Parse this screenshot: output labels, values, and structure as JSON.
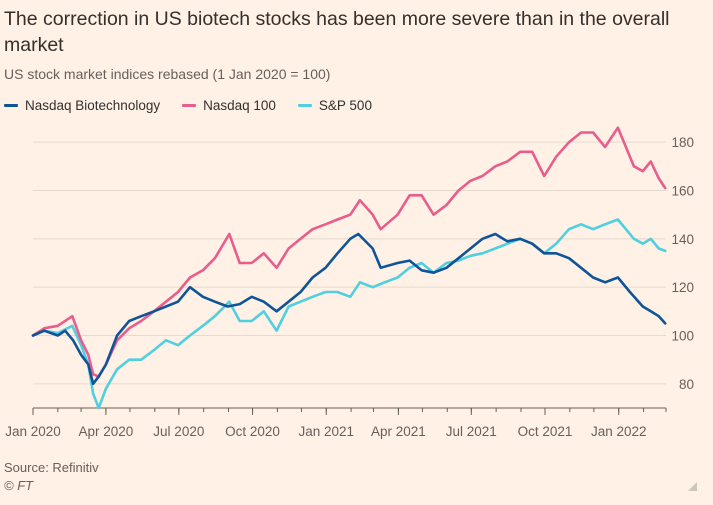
{
  "header": {
    "title": "The correction in US biotech stocks has been more severe than in the overall market",
    "subtitle": "US stock market indices rebased (1 Jan 2020 = 100)"
  },
  "footer": {
    "source": "Source: Refinitiv",
    "credit": "© FT"
  },
  "colors": {
    "background": "#FFF1E5",
    "gridline": "#E6D9CE",
    "axis": "#66605C"
  },
  "chart_data": {
    "type": "line",
    "title": "The correction in US biotech stocks has been more severe than in the overall market",
    "subtitle": "US stock market indices rebased (1 Jan 2020 = 100)",
    "xlabel": "",
    "ylabel": "",
    "y_axis_position": "right",
    "grid": true,
    "legend_placement": "top-left",
    "ylim": [
      70,
      190
    ],
    "y_ticks": [
      80,
      100,
      120,
      140,
      160,
      180
    ],
    "x_ticks": [
      {
        "date": "2020-01-01",
        "label": "Jan 2020"
      },
      {
        "date": "2020-04-01",
        "label": "Apr 2020"
      },
      {
        "date": "2020-07-01",
        "label": "Jul 2020"
      },
      {
        "date": "2020-10-01",
        "label": "Oct 2020"
      },
      {
        "date": "2021-01-01",
        "label": "Jan 2021"
      },
      {
        "date": "2021-04-01",
        "label": "Apr 2021"
      },
      {
        "date": "2021-07-01",
        "label": "Jul 2021"
      },
      {
        "date": "2021-10-01",
        "label": "Oct 2021"
      },
      {
        "date": "2022-01-01",
        "label": "Jan 2022"
      }
    ],
    "series": [
      {
        "name": "Nasdaq Biotechnology",
        "color": "#0F5499",
        "points": [
          [
            "2020-01-01",
            100
          ],
          [
            "2020-01-15",
            102
          ],
          [
            "2020-02-01",
            100
          ],
          [
            "2020-02-10",
            102
          ],
          [
            "2020-02-20",
            98
          ],
          [
            "2020-03-01",
            92
          ],
          [
            "2020-03-10",
            88
          ],
          [
            "2020-03-16",
            80
          ],
          [
            "2020-03-23",
            83
          ],
          [
            "2020-04-01",
            88
          ],
          [
            "2020-04-15",
            100
          ],
          [
            "2020-04-30",
            106
          ],
          [
            "2020-05-15",
            108
          ],
          [
            "2020-05-31",
            110
          ],
          [
            "2020-06-15",
            112
          ],
          [
            "2020-06-30",
            114
          ],
          [
            "2020-07-15",
            120
          ],
          [
            "2020-07-31",
            116
          ],
          [
            "2020-08-15",
            114
          ],
          [
            "2020-08-31",
            112
          ],
          [
            "2020-09-15",
            113
          ],
          [
            "2020-09-30",
            116
          ],
          [
            "2020-10-15",
            114
          ],
          [
            "2020-10-31",
            110
          ],
          [
            "2020-11-15",
            114
          ],
          [
            "2020-11-30",
            118
          ],
          [
            "2020-12-15",
            124
          ],
          [
            "2020-12-31",
            128
          ],
          [
            "2021-01-15",
            134
          ],
          [
            "2021-01-31",
            140
          ],
          [
            "2021-02-10",
            142
          ],
          [
            "2021-02-28",
            136
          ],
          [
            "2021-03-10",
            128
          ],
          [
            "2021-03-31",
            130
          ],
          [
            "2021-04-15",
            131
          ],
          [
            "2021-04-30",
            127
          ],
          [
            "2021-05-15",
            126
          ],
          [
            "2021-05-31",
            128
          ],
          [
            "2021-06-15",
            132
          ],
          [
            "2021-06-30",
            136
          ],
          [
            "2021-07-15",
            140
          ],
          [
            "2021-07-31",
            142
          ],
          [
            "2021-08-15",
            139
          ],
          [
            "2021-08-31",
            140
          ],
          [
            "2021-09-15",
            138
          ],
          [
            "2021-09-30",
            134
          ],
          [
            "2021-10-15",
            134
          ],
          [
            "2021-10-31",
            132
          ],
          [
            "2021-11-15",
            128
          ],
          [
            "2021-11-30",
            124
          ],
          [
            "2021-12-15",
            122
          ],
          [
            "2021-12-31",
            124
          ],
          [
            "2022-01-15",
            118
          ],
          [
            "2022-01-31",
            112
          ],
          [
            "2022-02-10",
            110
          ],
          [
            "2022-02-20",
            108
          ],
          [
            "2022-02-28",
            105
          ]
        ]
      },
      {
        "name": "Nasdaq 100",
        "color": "#E95D8C",
        "points": [
          [
            "2020-01-01",
            100
          ],
          [
            "2020-01-15",
            103
          ],
          [
            "2020-02-01",
            104
          ],
          [
            "2020-02-19",
            108
          ],
          [
            "2020-03-01",
            98
          ],
          [
            "2020-03-10",
            92
          ],
          [
            "2020-03-16",
            84
          ],
          [
            "2020-03-23",
            83
          ],
          [
            "2020-04-01",
            88
          ],
          [
            "2020-04-15",
            98
          ],
          [
            "2020-04-30",
            103
          ],
          [
            "2020-05-15",
            106
          ],
          [
            "2020-05-31",
            110
          ],
          [
            "2020-06-15",
            114
          ],
          [
            "2020-06-30",
            118
          ],
          [
            "2020-07-15",
            124
          ],
          [
            "2020-07-31",
            127
          ],
          [
            "2020-08-15",
            132
          ],
          [
            "2020-09-02",
            142
          ],
          [
            "2020-09-15",
            130
          ],
          [
            "2020-09-30",
            130
          ],
          [
            "2020-10-15",
            134
          ],
          [
            "2020-10-31",
            128
          ],
          [
            "2020-11-15",
            136
          ],
          [
            "2020-11-30",
            140
          ],
          [
            "2020-12-15",
            144
          ],
          [
            "2020-12-31",
            146
          ],
          [
            "2021-01-15",
            148
          ],
          [
            "2021-01-31",
            150
          ],
          [
            "2021-02-12",
            156
          ],
          [
            "2021-02-28",
            150
          ],
          [
            "2021-03-10",
            144
          ],
          [
            "2021-03-31",
            150
          ],
          [
            "2021-04-15",
            158
          ],
          [
            "2021-04-30",
            158
          ],
          [
            "2021-05-15",
            150
          ],
          [
            "2021-05-31",
            154
          ],
          [
            "2021-06-15",
            160
          ],
          [
            "2021-06-30",
            164
          ],
          [
            "2021-07-15",
            166
          ],
          [
            "2021-07-31",
            170
          ],
          [
            "2021-08-15",
            172
          ],
          [
            "2021-08-31",
            176
          ],
          [
            "2021-09-15",
            176
          ],
          [
            "2021-09-30",
            166
          ],
          [
            "2021-10-15",
            174
          ],
          [
            "2021-10-31",
            180
          ],
          [
            "2021-11-15",
            184
          ],
          [
            "2021-11-30",
            184
          ],
          [
            "2021-12-15",
            178
          ],
          [
            "2021-12-31",
            186
          ],
          [
            "2022-01-10",
            178
          ],
          [
            "2022-01-20",
            170
          ],
          [
            "2022-01-31",
            168
          ],
          [
            "2022-02-10",
            172
          ],
          [
            "2022-02-20",
            165
          ],
          [
            "2022-02-28",
            161
          ]
        ]
      },
      {
        "name": "S&P 500",
        "color": "#4FCFE0",
        "points": [
          [
            "2020-01-01",
            100
          ],
          [
            "2020-01-15",
            102
          ],
          [
            "2020-02-01",
            101
          ],
          [
            "2020-02-19",
            104
          ],
          [
            "2020-03-01",
            96
          ],
          [
            "2020-03-10",
            88
          ],
          [
            "2020-03-16",
            76
          ],
          [
            "2020-03-23",
            70
          ],
          [
            "2020-04-01",
            78
          ],
          [
            "2020-04-15",
            86
          ],
          [
            "2020-04-30",
            90
          ],
          [
            "2020-05-15",
            90
          ],
          [
            "2020-05-31",
            94
          ],
          [
            "2020-06-15",
            98
          ],
          [
            "2020-06-30",
            96
          ],
          [
            "2020-07-15",
            100
          ],
          [
            "2020-07-31",
            104
          ],
          [
            "2020-08-15",
            108
          ],
          [
            "2020-09-02",
            114
          ],
          [
            "2020-09-15",
            106
          ],
          [
            "2020-09-30",
            106
          ],
          [
            "2020-10-15",
            110
          ],
          [
            "2020-10-31",
            102
          ],
          [
            "2020-11-15",
            112
          ],
          [
            "2020-11-30",
            114
          ],
          [
            "2020-12-15",
            116
          ],
          [
            "2020-12-31",
            118
          ],
          [
            "2021-01-15",
            118
          ],
          [
            "2021-01-31",
            116
          ],
          [
            "2021-02-12",
            122
          ],
          [
            "2021-02-28",
            120
          ],
          [
            "2021-03-15",
            122
          ],
          [
            "2021-03-31",
            124
          ],
          [
            "2021-04-15",
            128
          ],
          [
            "2021-04-30",
            130
          ],
          [
            "2021-05-15",
            126
          ],
          [
            "2021-05-31",
            130
          ],
          [
            "2021-06-15",
            131
          ],
          [
            "2021-06-30",
            133
          ],
          [
            "2021-07-15",
            134
          ],
          [
            "2021-07-31",
            136
          ],
          [
            "2021-08-15",
            138
          ],
          [
            "2021-08-31",
            140
          ],
          [
            "2021-09-15",
            138
          ],
          [
            "2021-09-30",
            134
          ],
          [
            "2021-10-15",
            138
          ],
          [
            "2021-10-31",
            144
          ],
          [
            "2021-11-15",
            146
          ],
          [
            "2021-11-30",
            144
          ],
          [
            "2021-12-15",
            146
          ],
          [
            "2021-12-31",
            148
          ],
          [
            "2022-01-10",
            144
          ],
          [
            "2022-01-20",
            140
          ],
          [
            "2022-01-31",
            138
          ],
          [
            "2022-02-10",
            140
          ],
          [
            "2022-02-20",
            136
          ],
          [
            "2022-02-28",
            135
          ]
        ]
      }
    ]
  }
}
